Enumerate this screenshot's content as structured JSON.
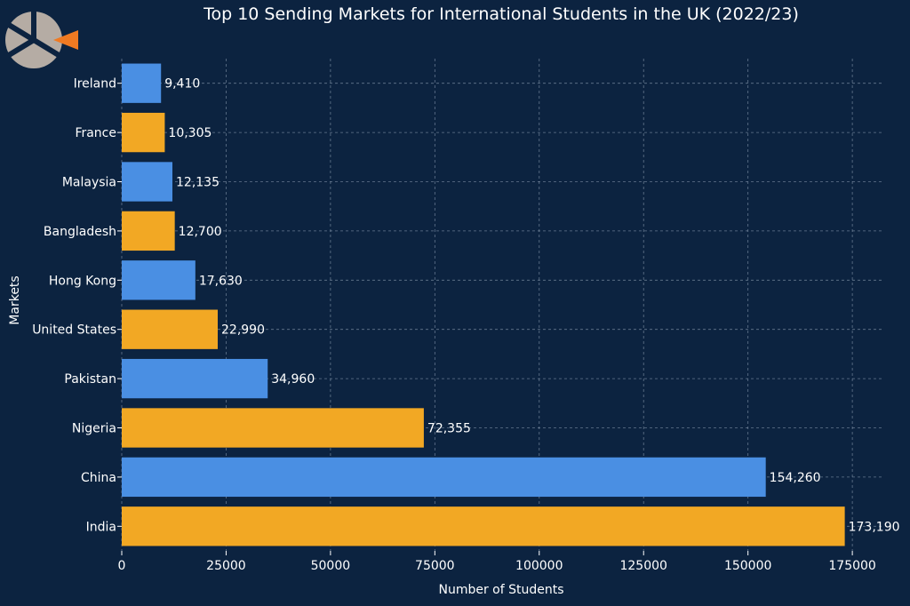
{
  "colors": {
    "background": "#0c2340",
    "bar_blue": "#4a8fe3",
    "bar_orange": "#f2a824",
    "grid": "#8a9bb0",
    "text": "#ffffff",
    "logo_gray": "#b5aca4",
    "logo_orange": "#f07a22"
  },
  "logo": {
    "icon": "brand-logo-icon"
  },
  "chart_data": {
    "type": "bar",
    "orientation": "horizontal",
    "title": "Top 10 Sending Markets for International Students in the UK (2022/23)",
    "xlabel": "Number of Students",
    "ylabel": "Markets",
    "categories": [
      "India",
      "China",
      "Nigeria",
      "Pakistan",
      "United States",
      "Hong Kong",
      "Bangladesh",
      "Malaysia",
      "France",
      "Ireland"
    ],
    "values": [
      173190,
      154260,
      72355,
      34960,
      22990,
      17630,
      12700,
      12135,
      10305,
      9410
    ],
    "value_labels": [
      "173,190",
      "154,260",
      "72,355",
      "34,960",
      "22,990",
      "17,630",
      "12,700",
      "12,135",
      "10,305",
      "9,410"
    ],
    "bar_colors": [
      "orange",
      "blue",
      "orange",
      "blue",
      "orange",
      "blue",
      "orange",
      "blue",
      "orange",
      "blue"
    ],
    "xticks": [
      0,
      25000,
      50000,
      75000,
      100000,
      125000,
      150000,
      175000
    ],
    "xtick_labels": [
      "0",
      "25000",
      "50000",
      "75000",
      "100000",
      "125000",
      "150000",
      "175000"
    ],
    "xlim": [
      0,
      182000
    ],
    "grid": true,
    "legend": false
  }
}
